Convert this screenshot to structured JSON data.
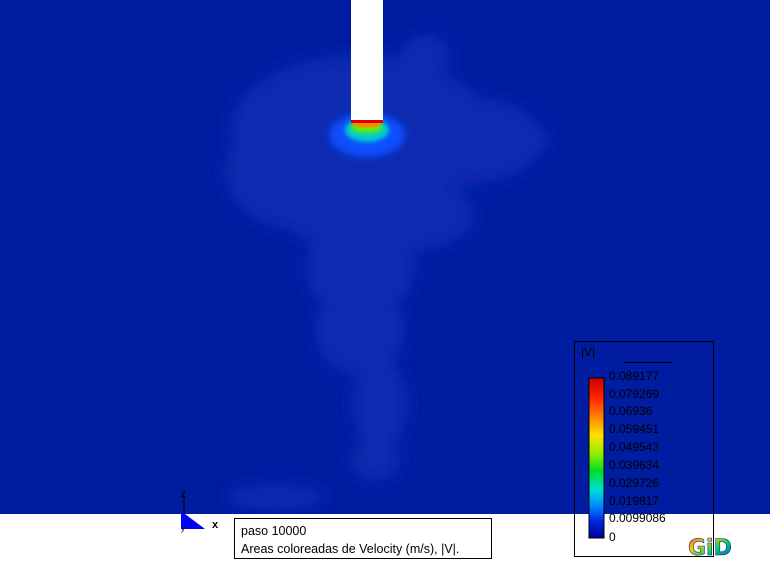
{
  "status": {
    "step": "paso 10000",
    "result": "Areas coloreadas de Velocity (m/s), |V|."
  },
  "legend": {
    "title": "|V|",
    "ticks": [
      "0.089177",
      "0.079269",
      "0.06936",
      "0.059451",
      "0.049543",
      "0.039634",
      "0.029726",
      "0.019817",
      "0.0099086",
      "0"
    ],
    "colors": [
      "#cc0000",
      "#ff2200",
      "#ff8800",
      "#ffe000",
      "#88ee00",
      "#00dd22",
      "#00dddd",
      "#0088ff",
      "#0022dd",
      "#000099"
    ]
  },
  "axes": {
    "x": "x",
    "z": "z",
    "y": "y"
  },
  "colors": {
    "background": "#001ca0",
    "plume": "#0a2bb0",
    "obstacle": "#ffffff"
  },
  "icons": {
    "logo": "gid-logo-icon",
    "axis": "axis-triad-icon"
  }
}
